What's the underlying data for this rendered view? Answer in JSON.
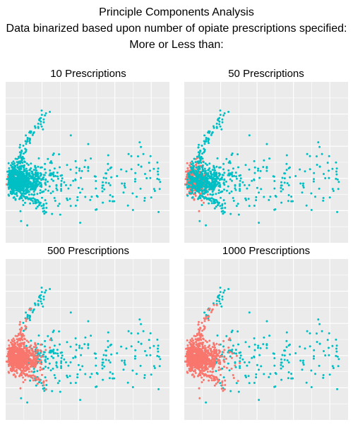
{
  "header": {
    "line1": "Principle Components Analysis",
    "line2": "Data binarized based upon number of opiate prescriptions specified:",
    "line3": "More or Less than:"
  },
  "colors": {
    "less": "#f8766d",
    "more": "#00bfc4",
    "panel_bg": "#ebebeb",
    "grid": "#ffffff"
  },
  "chart_data": [
    {
      "type": "scatter",
      "title": "10 Prescriptions",
      "xlabel": "",
      "ylabel": "",
      "grid": true,
      "legend": "none",
      "threshold": 10,
      "more_share": 0.85
    },
    {
      "type": "scatter",
      "title": "50 Prescriptions",
      "xlabel": "",
      "ylabel": "",
      "grid": true,
      "legend": "none",
      "threshold": 50,
      "more_share": 0.6
    },
    {
      "type": "scatter",
      "title": "500 Prescriptions",
      "xlabel": "",
      "ylabel": "",
      "grid": true,
      "legend": "none",
      "threshold": 500,
      "more_share": 0.35
    },
    {
      "type": "scatter",
      "title": "1000 Prescriptions",
      "xlabel": "",
      "ylabel": "",
      "grid": true,
      "legend": "none",
      "threshold": 1000,
      "more_share": 0.22
    }
  ]
}
